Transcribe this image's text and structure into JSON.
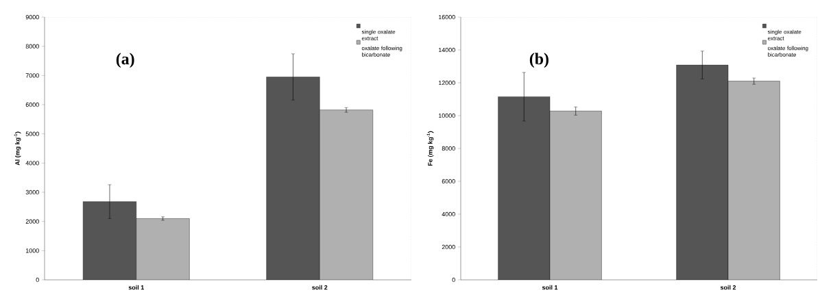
{
  "chart_data": [
    {
      "type": "bar",
      "title": "(a)",
      "ylabel": "**Al (mg kg$^{-1}$)**",
      "categories": [
        "soil 1",
        "soil 2"
      ],
      "ylim": [
        0,
        9000
      ],
      "yticks": [
        0,
        1000,
        2000,
        3000,
        4000,
        5000,
        6000,
        7000,
        8000,
        9000
      ],
      "legend": "top right",
      "series": [
        {
          "name": "single oxalate extract",
          "color": "#555555",
          "values": [
            2680,
            6950
          ],
          "errors": [
            580,
            790
          ]
        },
        {
          "name": "oxalate following bicarbonate",
          "color": "#b0b0b0",
          "values": [
            2100,
            5820
          ],
          "errors": [
            60,
            80
          ]
        }
      ]
    },
    {
      "type": "bar",
      "title": "(b)",
      "ylabel": "**Fe (mg kg$^{-1}$)**",
      "categories": [
        "soil 1",
        "soil 2"
      ],
      "ylim": [
        0,
        16000
      ],
      "yticks": [
        0,
        2000,
        4000,
        6000,
        8000,
        10000,
        12000,
        14000,
        16000
      ],
      "legend": "top right",
      "series": [
        {
          "name": "single oxalate extract",
          "color": "#555555",
          "values": [
            11150,
            13080
          ],
          "errors": [
            1480,
            850
          ]
        },
        {
          "name": "oxalate following bicarbonate",
          "color": "#b0b0b0",
          "values": [
            10280,
            12100
          ],
          "errors": [
            250,
            190
          ]
        }
      ]
    }
  ]
}
